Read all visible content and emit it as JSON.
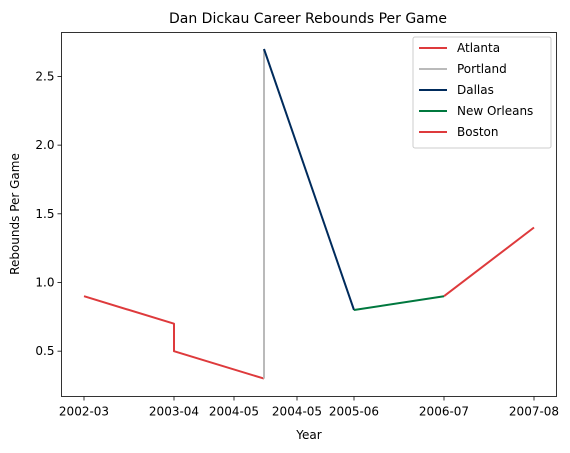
{
  "chart_data": {
    "type": "line",
    "title": "Dan Dickau Career Rebounds Per Game",
    "xlabel": "Year",
    "ylabel": "Rebounds Per Game",
    "x_categories": [
      "2002-03",
      "2003-04",
      "2004-05",
      "2004-05",
      "2005-06",
      "2006-07",
      "2007-08"
    ],
    "ylim": [
      0.17,
      2.82
    ],
    "yticks": [
      0.5,
      1.0,
      1.5,
      2.0,
      2.5
    ],
    "ytick_labels": [
      "0.5",
      "1.0",
      "1.5",
      "2.0",
      "2.5"
    ],
    "grid": false,
    "legend_position": "top-right",
    "series": [
      {
        "name": "Atlanta",
        "color": "#de3a3c",
        "points": [
          {
            "x": 0,
            "y": 0.9
          },
          {
            "x": 1,
            "y": 0.7
          },
          {
            "x": 1,
            "y": 0.5
          },
          {
            "x": 2,
            "y": 0.3
          }
        ]
      },
      {
        "name": "Portland",
        "color": "#bababa",
        "points": [
          {
            "x": 2,
            "y": 0.3
          },
          {
            "x": 2,
            "y": 2.7
          }
        ]
      },
      {
        "name": "Dallas",
        "color": "#002b5c",
        "points": [
          {
            "x": 2,
            "y": 2.7
          },
          {
            "x": 3,
            "y": 0.8
          }
        ]
      },
      {
        "name": "New Orleans",
        "color": "#00783e",
        "points": [
          {
            "x": 3,
            "y": 0.8
          },
          {
            "x": 4,
            "y": 0.9
          }
        ]
      },
      {
        "name": "Boston",
        "color": "#de3a3c",
        "points": [
          {
            "x": 4,
            "y": 0.9
          },
          {
            "x": 5,
            "y": 1.4
          }
        ]
      }
    ]
  }
}
